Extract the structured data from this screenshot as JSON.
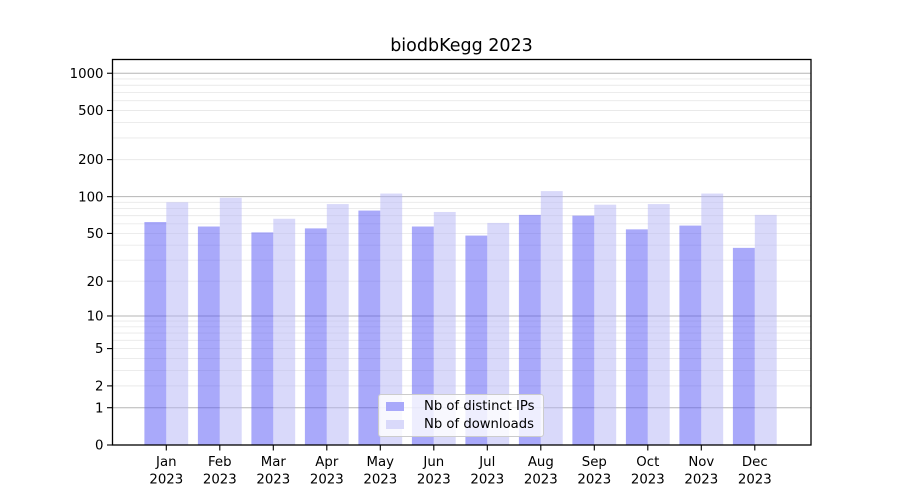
{
  "chart_data": {
    "type": "bar",
    "title": "biodbKegg 2023",
    "categories": [
      "Jan",
      "Feb",
      "Mar",
      "Apr",
      "May",
      "Jun",
      "Jul",
      "Aug",
      "Sep",
      "Oct",
      "Nov",
      "Dec"
    ],
    "year_label": "2023",
    "series": [
      {
        "name": "Nb of distinct IPs",
        "color": "#a9a9fa",
        "values": [
          62,
          57,
          51,
          55,
          77,
          57,
          48,
          71,
          70,
          54,
          58,
          38
        ]
      },
      {
        "name": "Nb of downloads",
        "color": "#d9d9fa",
        "values": [
          90,
          98,
          66,
          87,
          106,
          75,
          61,
          111,
          86,
          87,
          106,
          71
        ]
      }
    ],
    "yscale": "log1p",
    "yticks": [
      0,
      1,
      2,
      5,
      10,
      20,
      50,
      100,
      200,
      500,
      1000
    ],
    "ylim": [
      0,
      1290
    ],
    "xlabel": "",
    "ylabel": "",
    "grid": true,
    "legend_position": "lower center",
    "colors": {
      "major_gridline": "#b5b5b5",
      "minor_gridline": "#e9e9e9",
      "axis": "#000000",
      "text": "#000000",
      "background": "#ffffff"
    }
  }
}
